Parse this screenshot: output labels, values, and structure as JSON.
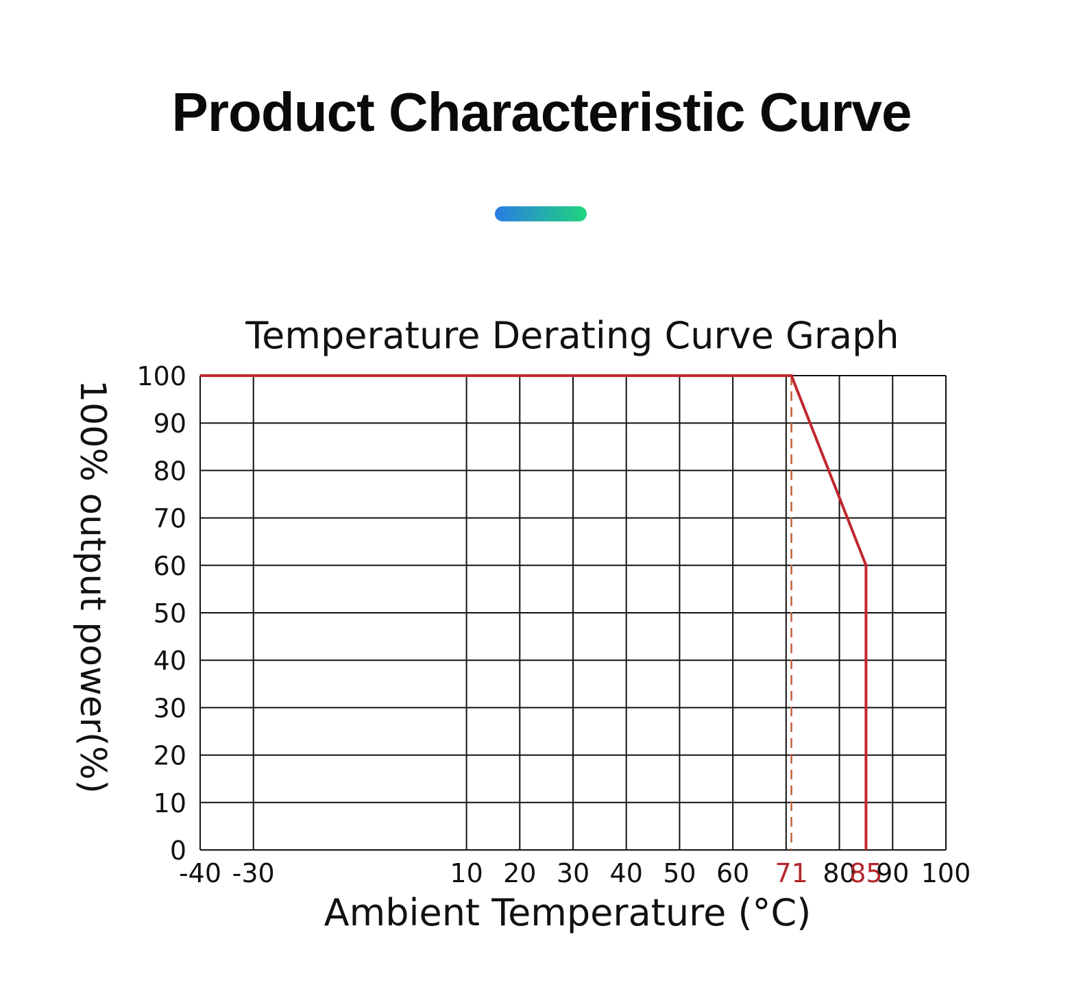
{
  "page": {
    "heading": "Product Characteristic Curve",
    "accent_gradient": [
      "#2a7be4",
      "#1fd67c"
    ]
  },
  "chart_data": {
    "type": "line",
    "title": "Temperature Derating Curve Graph",
    "xlabel": "Ambient Temperature (°C)",
    "ylabel": "100% output power(%)",
    "x_ticks": [
      {
        "value": -40,
        "label": "-40"
      },
      {
        "value": -30,
        "label": "-30"
      },
      {
        "value": 10,
        "label": "10"
      },
      {
        "value": 20,
        "label": "20"
      },
      {
        "value": 30,
        "label": "30"
      },
      {
        "value": 40,
        "label": "40"
      },
      {
        "value": 50,
        "label": "50"
      },
      {
        "value": 60,
        "label": "60"
      },
      {
        "value": 71,
        "label": "71",
        "highlight": true
      },
      {
        "value": 80,
        "label": "80"
      },
      {
        "value": 85,
        "label": "85",
        "highlight": true
      },
      {
        "value": 90,
        "label": "90"
      },
      {
        "value": 100,
        "label": "100"
      }
    ],
    "x_gridlines": [
      -40,
      -30,
      10,
      20,
      30,
      40,
      50,
      60,
      70,
      80,
      90,
      100
    ],
    "y_ticks": [
      0,
      10,
      20,
      30,
      40,
      50,
      60,
      70,
      80,
      90,
      100
    ],
    "xlim": [
      -40,
      100
    ],
    "ylim": [
      0,
      100
    ],
    "grid": true,
    "series": [
      {
        "color": "#c0272d",
        "x": [
          -40,
          71,
          85,
          85
        ],
        "y": [
          100,
          100,
          60,
          0
        ]
      }
    ],
    "reference_line": {
      "x": 71,
      "style": "dashed",
      "color": "#c0603a"
    },
    "highlight_color": "#b3262a"
  }
}
